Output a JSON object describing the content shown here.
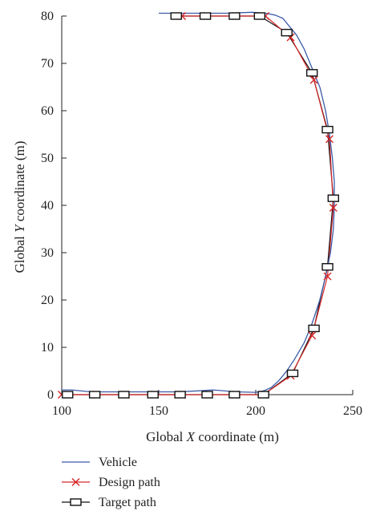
{
  "chart_data": {
    "type": "line",
    "title": "",
    "xlabel_prefix": "Global ",
    "xlabel_var": "X",
    "xlabel_suffix": " coordinate (m)",
    "ylabel_prefix": "Global ",
    "ylabel_var": "Y",
    "ylabel_suffix": " coordinate (m)",
    "xlim": [
      100,
      250
    ],
    "ylim": [
      0,
      80
    ],
    "xticks": [
      100,
      150,
      200,
      250
    ],
    "yticks": [
      0,
      10,
      20,
      30,
      40,
      50,
      60,
      70,
      80
    ],
    "grid": false,
    "legend_position": "bottom-left",
    "series": [
      {
        "name": "Vehicle",
        "color": "#3b5ba8",
        "marker": "none",
        "x": [
          100,
          105,
          115,
          130,
          145,
          160,
          170,
          178,
          190,
          200,
          204,
          208,
          212,
          216,
          220,
          225,
          229,
          233,
          236,
          238.5,
          240,
          240.5,
          240.5,
          239.5,
          238,
          236,
          233,
          229,
          225,
          221,
          217,
          214,
          210,
          205,
          198,
          185,
          170,
          160,
          150
        ],
        "y": [
          1,
          1,
          0.6,
          0.6,
          0.6,
          0.6,
          0.8,
          1,
          0.6,
          0.5,
          0.8,
          1.5,
          3,
          5,
          7.5,
          11,
          15,
          20,
          25,
          30,
          35,
          40,
          45,
          50,
          55,
          60,
          65,
          69,
          73,
          76,
          78,
          79.5,
          80.2,
          80.6,
          80.8,
          80.6,
          80.6,
          80.6,
          80.6
        ]
      },
      {
        "name": "Design path",
        "color": "#d62728",
        "marker": "x",
        "x": [
          100,
          118,
          133,
          148,
          162,
          176,
          190,
          204,
          218,
          229,
          237,
          240,
          238,
          230,
          218,
          205,
          190,
          175,
          162
        ],
        "y": [
          0,
          0,
          0,
          0,
          0,
          0,
          0,
          0,
          4,
          12.5,
          25,
          39.5,
          54,
          66.5,
          75.5,
          80,
          80,
          80,
          80
        ]
      },
      {
        "name": "Target path",
        "color": "#111111",
        "marker": "square-open",
        "x": [
          103,
          117,
          132,
          147,
          161,
          175,
          189,
          204,
          219,
          230,
          237,
          240,
          237,
          229,
          216,
          202,
          189,
          174,
          159
        ],
        "y": [
          0,
          0,
          0,
          0,
          0,
          0,
          0,
          0,
          4.5,
          14,
          27,
          41.5,
          56,
          68,
          76.5,
          80,
          80,
          80,
          80
        ]
      }
    ]
  }
}
